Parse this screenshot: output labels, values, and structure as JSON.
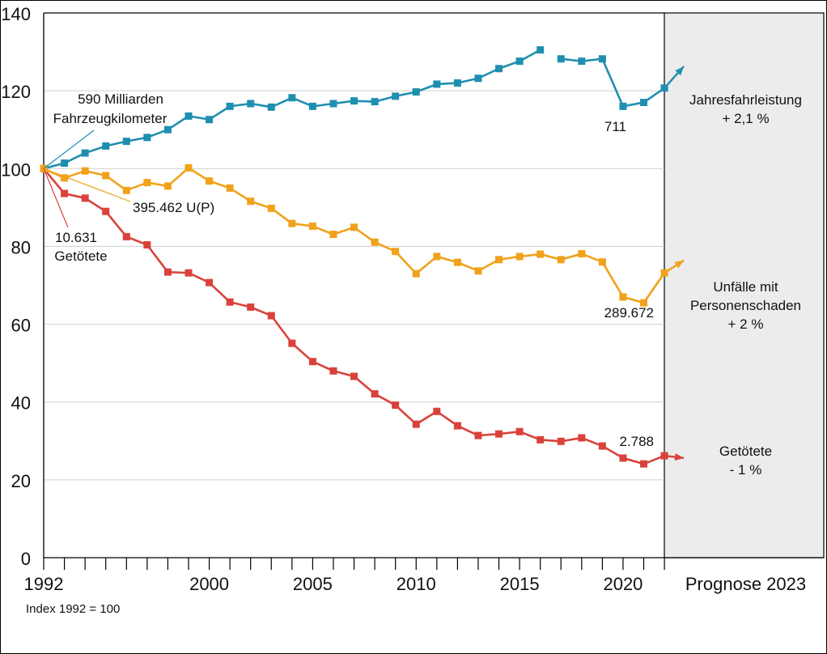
{
  "chart_data": {
    "type": "line",
    "title": "",
    "xlabel": "",
    "ylabel": "",
    "note": "Index 1992 = 100",
    "ylim": [
      0,
      140
    ],
    "yticks": [
      0,
      20,
      40,
      60,
      80,
      100,
      120,
      140
    ],
    "xlim": [
      1992,
      2022
    ],
    "xtick_labels": [
      {
        "year": 1992,
        "label": "1992"
      },
      {
        "year": 2000,
        "label": "2000"
      },
      {
        "year": 2005,
        "label": "2005"
      },
      {
        "year": 2010,
        "label": "2010"
      },
      {
        "year": 2015,
        "label": "2015"
      },
      {
        "year": 2020,
        "label": "2020"
      }
    ],
    "forecast_label": "Prognose 2023",
    "grid": true,
    "x": [
      1992,
      1993,
      1994,
      1995,
      1996,
      1997,
      1998,
      1999,
      2000,
      2001,
      2002,
      2003,
      2004,
      2005,
      2006,
      2007,
      2008,
      2009,
      2010,
      2011,
      2012,
      2013,
      2014,
      2015,
      2016,
      2017,
      2018,
      2019,
      2020,
      2021,
      2022
    ],
    "series": [
      {
        "name": "Jahresfahrleistung",
        "color": "#1f8fb0",
        "gap_after_year": 2016,
        "values": [
          100,
          101.4,
          104,
          105.8,
          107,
          108,
          110,
          113.5,
          112.6,
          116,
          116.7,
          115.8,
          118.2,
          116,
          116.7,
          117.4,
          117.2,
          118.6,
          119.7,
          121.7,
          122,
          123.2,
          125.7,
          127.6,
          130.5,
          128.2,
          127.6,
          128.2,
          116,
          117,
          120.7
        ],
        "start_label": [
          "590 Milliarden",
          "Fahrzeugkilometer"
        ],
        "end_label": "711",
        "forecast_text": [
          "Jahresfahrleistung",
          "+ 2,1 %"
        ],
        "forecast_change_pct": 2.1
      },
      {
        "name": "Unfälle mit Personenschaden",
        "color": "#f0a21a",
        "values": [
          100,
          97.6,
          99.4,
          98.2,
          94.4,
          96.4,
          95.5,
          100.2,
          96.8,
          95,
          91.6,
          89.8,
          85.9,
          85.2,
          83.1,
          84.9,
          81.1,
          78.7,
          73,
          77.4,
          75.9,
          73.7,
          76.6,
          77.4,
          78,
          76.6,
          78.1,
          76,
          67,
          65.5,
          73.2
        ],
        "start_label": [
          "395.462 U(P)"
        ],
        "end_label": "289.672",
        "forecast_text": [
          "Unfälle mit",
          "Personenschaden",
          "+ 2 %"
        ],
        "forecast_change_pct": 2
      },
      {
        "name": "Getötete",
        "color": "#d9423b",
        "values": [
          100,
          93.6,
          92.4,
          89,
          82.5,
          80.4,
          73.4,
          73.2,
          70.7,
          65.7,
          64.4,
          62.2,
          55.1,
          50.4,
          48,
          46.6,
          42.1,
          39.2,
          34.3,
          37.6,
          33.9,
          31.4,
          31.8,
          32.4,
          30.3,
          29.9,
          30.8,
          28.7,
          25.6,
          24.1,
          26.2
        ],
        "start_label": [
          "10.631",
          "Getötete"
        ],
        "end_label": "2.788",
        "forecast_text": [
          "Getötete",
          "- 1 %"
        ],
        "forecast_change_pct": -1
      }
    ]
  }
}
